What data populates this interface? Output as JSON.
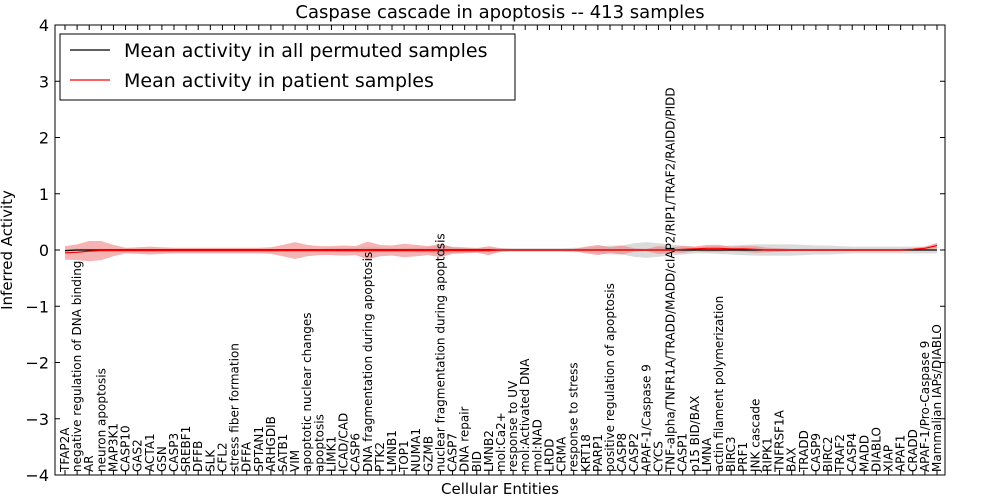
{
  "chart_data": {
    "type": "line",
    "title": "Caspase cascade in apoptosis -- 413 samples",
    "xlabel": "Cellular Entities",
    "ylabel": "Inferred Activity",
    "ylim": [
      -4,
      4
    ],
    "yticks": [
      -4,
      -3,
      -2,
      -1,
      0,
      1,
      2,
      3,
      4
    ],
    "ytick_labels": [
      "−4",
      "−3",
      "−2",
      "−1",
      "0",
      "1",
      "2",
      "3",
      "4"
    ],
    "grid": false,
    "legend_position": "top-left",
    "categories": [
      "TFAP2A",
      "negative regulation of DNA binding",
      "AR",
      "neuron apoptosis",
      "MAP3K1",
      "CASP10",
      "GAS2",
      "ACTA1",
      "GSN",
      "CASP3",
      "SREBF1",
      "DFFB",
      "SLK",
      "CFL2",
      "stress fiber formation",
      "DFFA",
      "SPTAN1",
      "ARHGDIB",
      "SATB1",
      "VIM",
      "apoptotic nuclear changes",
      "apoptosis",
      "LIMK1",
      "ICAD/CAD",
      "CASP6",
      "DNA fragmentation during apoptosis",
      "PTK2",
      "LMNB1",
      "TOP1",
      "NUMA1",
      "GZMB",
      "nuclear fragmentation during apoptosis",
      "CASP7",
      "DNA repair",
      "BID",
      "LMNB2",
      "mol:Ca2+",
      "response to UV",
      "mol:Activated DNA",
      "mol:NAD",
      "LRDD",
      "CRMA",
      "response to stress",
      "KRT18",
      "PARP1",
      "positive regulation of apoptosis",
      "CASP8",
      "CASP2",
      "APAF-1/Caspase 9",
      "CYCS",
      "TNF-alpha/TNFR1A/TRADD/MADD/cIAP2/RIP1/TRAF2/RAIDD/PIDD",
      "CASP1",
      "p15 BID/BAX",
      "LMNA",
      "actin filament polymerization",
      "BIRC3",
      "PRF1",
      "JNK cascade",
      "RIPK1",
      "TNFRSF1A",
      "BAX",
      "TRADD",
      "CASP9",
      "BIRC2",
      "TRAF2",
      "CASP4",
      "MADD",
      "DIABLO",
      "XIAP",
      "APAF1",
      "CRADD",
      "APAF-1/Pro-Caspase 9",
      "Mammalian IAPs/DIABLO"
    ],
    "series": [
      {
        "name": "Mean activity in all permuted samples",
        "color": "#000000",
        "values": [
          -0.01,
          0.0,
          0.0,
          0.0,
          0.0,
          0.0,
          0.0,
          0.0,
          0.0,
          0.0,
          0.0,
          0.0,
          0.0,
          0.0,
          0.0,
          0.0,
          0.0,
          0.0,
          0.0,
          0.0,
          0.0,
          0.0,
          0.0,
          0.0,
          0.0,
          0.0,
          0.0,
          0.0,
          0.0,
          0.0,
          0.0,
          0.0,
          0.0,
          0.0,
          0.0,
          0.0,
          0.0,
          0.0,
          0.0,
          0.0,
          0.0,
          0.0,
          0.0,
          0.0,
          0.0,
          0.0,
          0.0,
          0.0,
          0.0,
          0.0,
          0.0,
          0.0,
          0.0,
          0.0,
          0.0,
          0.0,
          0.0,
          0.0,
          0.0,
          0.0,
          0.0,
          0.0,
          0.0,
          0.0,
          0.0,
          0.0,
          0.0,
          0.0,
          0.0,
          0.0,
          0.0,
          0.0,
          0.0
        ],
        "spread": [
          0.02,
          0.02,
          0.02,
          0.02,
          0.02,
          0.02,
          0.02,
          0.02,
          0.02,
          0.02,
          0.02,
          0.02,
          0.02,
          0.02,
          0.02,
          0.02,
          0.02,
          0.02,
          0.02,
          0.02,
          0.02,
          0.02,
          0.03,
          0.03,
          0.04,
          0.05,
          0.04,
          0.03,
          0.03,
          0.04,
          0.05,
          0.08,
          0.06,
          0.05,
          0.04,
          0.04,
          0.03,
          0.03,
          0.03,
          0.03,
          0.03,
          0.03,
          0.04,
          0.04,
          0.06,
          0.08,
          0.08,
          0.12,
          0.14,
          0.12,
          0.1,
          0.08,
          0.06,
          0.06,
          0.07,
          0.08,
          0.09,
          0.1,
          0.1,
          0.1,
          0.1,
          0.09,
          0.08,
          0.08,
          0.07,
          0.06,
          0.06,
          0.06,
          0.06,
          0.06,
          0.06,
          0.06,
          0.06
        ],
        "fill_color": "#b0b0b0"
      },
      {
        "name": "Mean activity in patient samples",
        "color": "#ff0000",
        "values": [
          -0.05,
          -0.04,
          -0.02,
          -0.01,
          -0.01,
          -0.01,
          -0.01,
          -0.01,
          -0.01,
          -0.01,
          -0.01,
          -0.01,
          -0.01,
          -0.01,
          -0.01,
          -0.01,
          -0.01,
          -0.01,
          -0.01,
          -0.01,
          -0.01,
          -0.01,
          -0.01,
          -0.01,
          -0.01,
          -0.01,
          -0.01,
          -0.01,
          -0.01,
          -0.01,
          -0.01,
          -0.01,
          -0.01,
          -0.01,
          -0.01,
          -0.01,
          0.0,
          0.0,
          0.0,
          0.0,
          0.0,
          0.0,
          0.0,
          0.0,
          0.0,
          0.0,
          0.0,
          0.0,
          0.0,
          0.0,
          0.0,
          0.01,
          0.02,
          0.03,
          0.03,
          0.02,
          0.02,
          0.01,
          0.0,
          0.0,
          0.0,
          0.0,
          0.0,
          0.0,
          0.0,
          0.0,
          0.0,
          0.0,
          0.0,
          0.0,
          0.01,
          0.03,
          0.08
        ],
        "spread": [
          0.12,
          0.14,
          0.18,
          0.17,
          0.1,
          0.05,
          0.06,
          0.07,
          0.06,
          0.05,
          0.05,
          0.05,
          0.05,
          0.05,
          0.05,
          0.05,
          0.05,
          0.06,
          0.1,
          0.15,
          0.1,
          0.08,
          0.08,
          0.09,
          0.08,
          0.16,
          0.1,
          0.09,
          0.12,
          0.1,
          0.08,
          0.12,
          0.06,
          0.05,
          0.04,
          0.08,
          0.03,
          0.02,
          0.02,
          0.02,
          0.02,
          0.02,
          0.02,
          0.06,
          0.09,
          0.05,
          0.08,
          0.03,
          0.02,
          0.07,
          0.05,
          0.06,
          0.04,
          0.06,
          0.06,
          0.04,
          0.05,
          0.06,
          0.04,
          0.03,
          0.02,
          0.02,
          0.02,
          0.02,
          0.02,
          0.02,
          0.02,
          0.02,
          0.02,
          0.02,
          0.02,
          0.03,
          0.05
        ],
        "fill_color": "#f08080"
      }
    ]
  }
}
